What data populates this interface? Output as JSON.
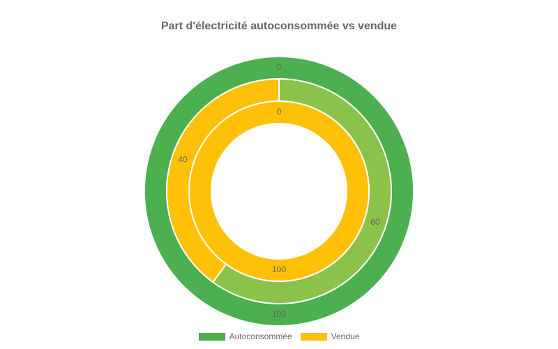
{
  "chart_data": {
    "type": "pie",
    "subtype": "multi-ring-doughnut",
    "title": "Part d'électricité autoconsommée vs vendue",
    "legend": {
      "placement": "bottom",
      "entries": [
        {
          "label": "Autoconsommée",
          "color": "#4caf50"
        },
        {
          "label": "Vendue",
          "color": "#ffc107"
        }
      ]
    },
    "rings": [
      {
        "position": "outer",
        "slices": [
          {
            "value": 100,
            "color": "#4caf50"
          },
          {
            "value": 0,
            "color": "#ffc107"
          }
        ]
      },
      {
        "position": "middle",
        "slices": [
          {
            "value": 60,
            "color": "#8bc34a"
          },
          {
            "value": 40,
            "color": "#ffc107"
          }
        ]
      },
      {
        "position": "inner",
        "slices": [
          {
            "value": 0,
            "color": "#8bc34a"
          },
          {
            "value": 100,
            "color": "#ffc107"
          }
        ]
      }
    ]
  }
}
